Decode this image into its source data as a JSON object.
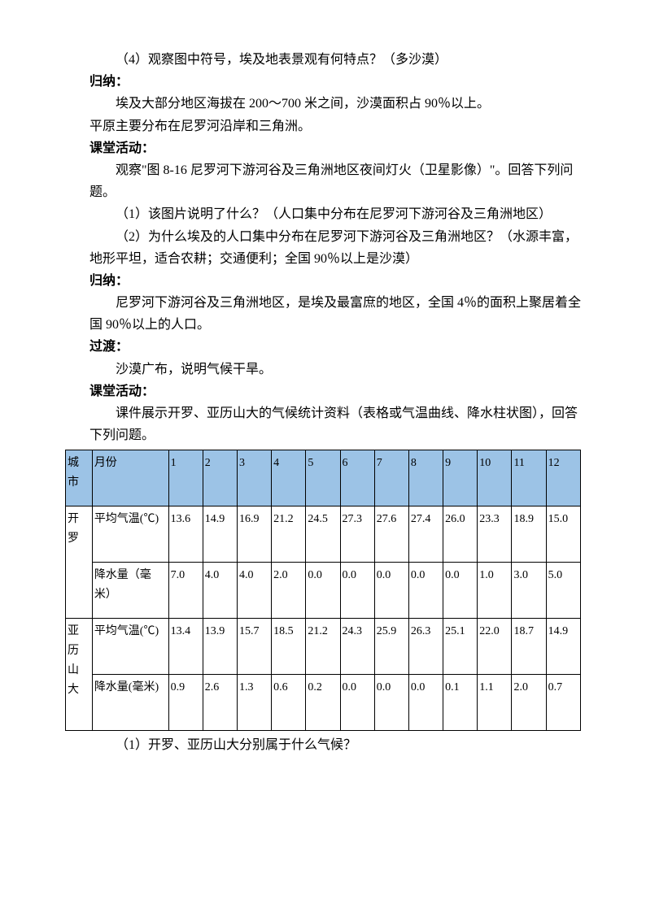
{
  "paragraphs": {
    "q4": "（4）观察图中符号，埃及地表景观有何特点？（多沙漠）",
    "guinaLabel1": "归纳：",
    "guina1a": "埃及大部分地区海拔在 200～700 米之间，沙漠面积占 90％以上。",
    "guina1b": "平原主要分布在尼罗河沿岸和三角洲。",
    "ketang1Label": "课堂活动：",
    "ketang1a": "观察\"图 8-16 尼罗河下游河谷及三角洲地区夜间灯火（卫星影像）\"。回答下列问题。",
    "ketang1q1": "（1）该图片说明了什么？（人口集中分布在尼罗河下游河谷及三角洲地区）",
    "ketang1q2": "（2）为什么埃及的人口集中分布在尼罗河下游河谷及三角洲地区？（水源丰富，地形平坦，适合农耕；交通便利；全国 90％以上是沙漠）",
    "guinaLabel2": "归纳：",
    "guina2": "尼罗河下游河谷及三角洲地区，是埃及最富庶的地区，全国 4％的面积上聚居着全国 90％以上的人口。",
    "guoduLabel": "过渡：",
    "guodu": "沙漠广布，说明气候干旱。",
    "ketang2Label": "课堂活动：",
    "ketang2a": "课件展示开罗、亚历山大的气候统计资料（表格或气温曲线、降水柱状图），回答下列问题。",
    "q1after": "（1）开罗、亚历山大分别属于什么气候？"
  },
  "table": {
    "headers": {
      "city": "城市",
      "month": "月份",
      "months": [
        "1",
        "2",
        "3",
        "4",
        "5",
        "6",
        "7",
        "8",
        "9",
        "10",
        "11",
        "12"
      ]
    },
    "rows": [
      {
        "city": "开罗",
        "metrics": [
          {
            "label": "平均气温(℃)",
            "values": [
              "13.6",
              "14.9",
              "16.9",
              "21.2",
              "24.5",
              "27.3",
              "27.6",
              "27.4",
              "26.0",
              "23.3",
              "18.9",
              "15.0"
            ]
          },
          {
            "label": "降水量（毫米）",
            "values": [
              "7.0",
              "4.0",
              "4.0",
              "2.0",
              "0.0",
              "0.0",
              "0.0",
              "0.0",
              "0.0",
              "1.0",
              "3.0",
              "5.0"
            ]
          }
        ]
      },
      {
        "city": "亚历山大",
        "metrics": [
          {
            "label": "平均气温(℃)",
            "values": [
              "13.4",
              "13.9",
              "15.7",
              "18.5",
              "21.2",
              "24.3",
              "25.9",
              "26.3",
              "25.1",
              "22.0",
              "18.7",
              "14.9"
            ]
          },
          {
            "label": "降水量(毫米)",
            "values": [
              "0.9",
              "2.6",
              "1.3",
              "0.6",
              "0.2",
              "0.0",
              "0.0",
              "0.0",
              "0.1",
              "1.1",
              "2.0",
              "0.7"
            ]
          }
        ]
      }
    ],
    "header_bg": "#9cc3e6"
  }
}
